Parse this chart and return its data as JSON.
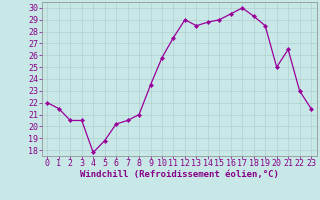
{
  "x": [
    0,
    1,
    2,
    3,
    4,
    5,
    6,
    7,
    8,
    9,
    10,
    11,
    12,
    13,
    14,
    15,
    16,
    17,
    18,
    19,
    20,
    21,
    22,
    23
  ],
  "y": [
    22,
    21.5,
    20.5,
    20.5,
    17.8,
    18.8,
    20.2,
    20.5,
    21.0,
    23.5,
    25.8,
    27.5,
    29.0,
    28.5,
    28.8,
    29.0,
    29.5,
    30.0,
    29.3,
    28.5,
    25.0,
    26.5,
    23.0,
    21.5
  ],
  "line_color": "#990099",
  "marker": "D",
  "marker_size": 2.2,
  "bg_color": "#c8e8e8",
  "grid_color": "#b0d0d0",
  "xlabel": "Windchill (Refroidissement éolien,°C)",
  "ylabel": "",
  "ylim": [
    17.5,
    30.5
  ],
  "xlim": [
    -0.5,
    23.5
  ],
  "yticks": [
    18,
    19,
    20,
    21,
    22,
    23,
    24,
    25,
    26,
    27,
    28,
    29,
    30
  ],
  "xticks": [
    0,
    1,
    2,
    3,
    4,
    5,
    6,
    7,
    8,
    9,
    10,
    11,
    12,
    13,
    14,
    15,
    16,
    17,
    18,
    19,
    20,
    21,
    22,
    23
  ],
  "xlabel_color": "#880088",
  "tick_color": "#880088",
  "xlabel_fontsize": 6.5,
  "tick_fontsize": 6.0,
  "spine_color": "#888888",
  "line_width": 0.9
}
